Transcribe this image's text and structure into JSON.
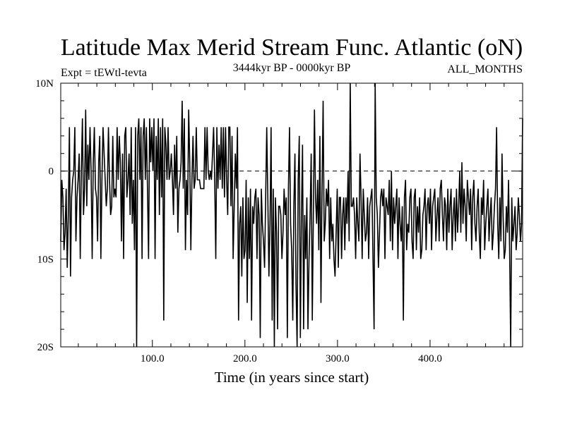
{
  "chart_data": {
    "type": "line",
    "title": "Latitude Max Merid Stream Func. Atlantic (oN)",
    "expt_label": "Expt = tEWtl-tevta",
    "period_label": "3444kyr BP - 0000kyr BP",
    "months_label": "ALL_MONTHS",
    "xlabel": "Time (in years since start)",
    "ylabel": "",
    "xlim": [
      1,
      500
    ],
    "ylim": [
      -20,
      10
    ],
    "x_ticks": [
      {
        "value": 100,
        "label": "100.0"
      },
      {
        "value": 200,
        "label": "200.0"
      },
      {
        "value": 300,
        "label": "300.0"
      },
      {
        "value": 400,
        "label": "400.0"
      }
    ],
    "y_ticks": [
      {
        "value": 10,
        "label": "10N"
      },
      {
        "value": 0,
        "label": "0"
      },
      {
        "value": -10,
        "label": "10S"
      },
      {
        "value": -20,
        "label": "20S"
      }
    ],
    "zero_line": true,
    "grid": false,
    "colors": {
      "line": "#000000",
      "background": "#ffffff"
    },
    "series": [
      {
        "values": [
          -8,
          -1,
          -3,
          -9,
          -7,
          -2,
          -11,
          -5,
          5,
          -12,
          -3,
          -1,
          0,
          5,
          -8,
          -3,
          -1,
          2,
          -10,
          0,
          6,
          -5,
          -2,
          7,
          -4,
          3,
          -1,
          5,
          0,
          -10,
          1,
          5,
          -2,
          -3,
          -8,
          1,
          4,
          -10,
          -1,
          5,
          2,
          -1,
          -4,
          -2,
          5,
          -1,
          -5,
          -4,
          4,
          -3,
          -2,
          -3,
          5,
          -1,
          4,
          1,
          -8,
          2,
          -10,
          4,
          5,
          -3,
          -1,
          2,
          -5,
          5,
          -6,
          -1,
          -9,
          5,
          -21,
          4,
          6,
          -1,
          5,
          -10,
          4,
          6,
          -1,
          5,
          -2,
          -10,
          6,
          1,
          5,
          0,
          6,
          -10,
          4,
          -1,
          6,
          -5,
          5,
          -3,
          6,
          -17,
          5,
          3,
          -1,
          5,
          -1,
          0,
          2,
          -1,
          -5,
          3,
          -2,
          4,
          -7,
          -2,
          -1,
          1,
          8,
          -2,
          6,
          -9,
          -1,
          -5,
          7,
          1,
          -9,
          -1,
          4,
          -2,
          -1,
          5,
          -1,
          -1,
          -1,
          -2,
          -2,
          -2,
          -2,
          5,
          -1,
          5,
          0,
          -1,
          0,
          -1,
          2,
          5,
          -1,
          -10,
          5,
          -2,
          3,
          -1,
          5,
          -2,
          5,
          -3,
          5,
          -1,
          -5,
          5,
          5,
          -4,
          4,
          -10,
          -4,
          2,
          -2,
          5,
          -17,
          -6,
          -4,
          -12,
          -3,
          -10,
          -9,
          -1,
          -15,
          -3,
          -10,
          -2,
          -17,
          -4,
          -6,
          -3,
          -2,
          -10,
          -3,
          -5,
          -19,
          -2,
          -6,
          -8,
          -11,
          -3,
          5,
          -3,
          -12,
          -6,
          5,
          -17,
          -2,
          -21,
          -3,
          -7,
          -18,
          -4,
          -4,
          -5,
          -10,
          -7,
          -2,
          -5,
          -3,
          -19,
          -2,
          5,
          -6,
          -9,
          -17,
          -4,
          2,
          -13,
          -20,
          -1,
          4,
          -19,
          -5,
          3,
          -18,
          -5,
          -10,
          -3,
          -18,
          -10,
          -5,
          2,
          -17,
          -5,
          7,
          -3,
          -6,
          -1,
          -9,
          4,
          -15,
          -2,
          8,
          -8,
          -6,
          -2,
          -4,
          -1,
          -10,
          -3,
          -8,
          -6,
          -10,
          -12,
          -7,
          -2,
          -11,
          -3,
          -3,
          -10,
          -5,
          -3,
          -9,
          -3,
          -6,
          0,
          -8,
          11,
          -4,
          -4,
          -3,
          -5,
          -10,
          -3,
          -6,
          -8,
          2,
          -3,
          -10,
          -2,
          -5,
          -8,
          -7,
          -3,
          -10,
          -4,
          -3,
          -2,
          -10,
          -18,
          10,
          -3,
          -5,
          -11,
          -7,
          -3,
          -2,
          -4,
          -2,
          -10,
          -3,
          -4,
          -5,
          -1,
          -8,
          0,
          -9,
          -3,
          -6,
          -4,
          -2,
          -10,
          -3,
          -6,
          -8,
          -4,
          -17,
          -3,
          -1,
          -9,
          -6,
          -7,
          -3,
          -2,
          -8,
          -10,
          -3,
          -2,
          -9,
          -4,
          -7,
          -3,
          -10,
          -9,
          -5,
          -4,
          -2,
          -9,
          -4,
          -3,
          -6,
          -2,
          -9,
          -4,
          -3,
          -2,
          -8,
          -5,
          -3,
          -8,
          -2,
          -1,
          -5,
          -8,
          -3,
          -4,
          -9,
          -2,
          -7,
          -4,
          -2,
          -9,
          -5,
          -3,
          -8,
          -2,
          -7,
          -4,
          0,
          -7,
          1,
          -6,
          -2,
          -4,
          -8,
          -1,
          -3,
          -5,
          -2,
          -9,
          -3,
          -1,
          -6,
          -8,
          -4,
          -2,
          -7,
          -10,
          -3,
          -5,
          -1,
          -9,
          -6,
          -4,
          -2,
          -8,
          -5,
          -3,
          -9,
          -7,
          -4,
          -2,
          5,
          -6,
          -10,
          -3,
          -8,
          2,
          -5,
          -10,
          -9,
          -4,
          -7,
          -1,
          -9,
          -20,
          -3,
          -8,
          -6,
          -4,
          -9,
          -7,
          -3,
          -5,
          -8,
          -6,
          6
        ]
      }
    ]
  }
}
